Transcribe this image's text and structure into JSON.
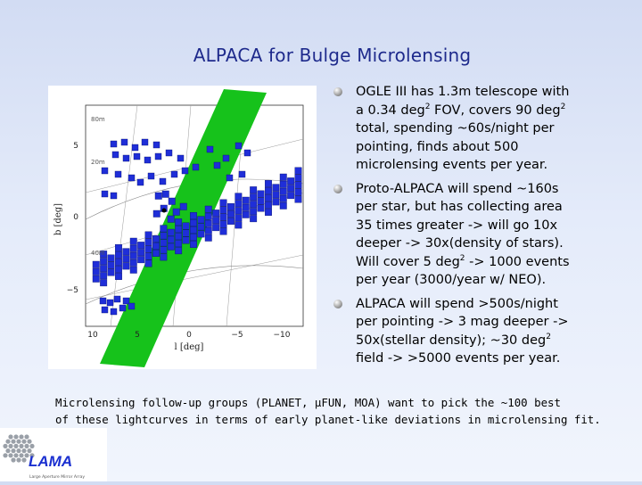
{
  "title": "ALPACA for Bulge Microlensing",
  "figure": {
    "y_axis_label": "b [deg]",
    "x_axis_label": "l [deg]",
    "x_ticks": [
      "10",
      "5",
      "0",
      "−5",
      "−10"
    ],
    "y_ticks": [
      "5",
      "0",
      "−5"
    ],
    "contour_labels": [
      "20m",
      "40m",
      "80m"
    ],
    "colors": {
      "field": "#1f2ed8",
      "strip": "#16c21b",
      "background": "#ffffff"
    }
  },
  "bullets": [
    {
      "pre": "OGLE III has 1.3m telescope with\na 0.34 deg",
      "sup": "2",
      "post": " FOV, covers 90 deg",
      "sup2": "2",
      "post2": "\ntotal, spending ~60s/night per\npointing, finds about 500\nmicrolensing events per year."
    },
    {
      "pre": "Proto-ALPACA will spend ~160s\nper star, but has collecting area\n35 times greater -> will go 10x\ndeeper -> 30x(density of stars).\nWill cover 5 deg",
      "sup": "2",
      "post": " -> 1000 events\nper year (3000/year w/ NEO).",
      "sup2": "",
      "post2": ""
    },
    {
      "pre": "ALPACA will spend >500s/night\nper pointing -> 3 mag deeper ->\n50x(stellar density); ~30 deg",
      "sup": "2",
      "post": "\nfield -> >5000 events per year.",
      "sup2": "",
      "post2": ""
    }
  ],
  "footer_text": "Microlensing follow-up groups (PLANET, μFUN, MOA) want to pick the ~100 best\nof these lightcurves in terms of early planet-like deviations in microlensing fit.",
  "logo": {
    "text": "LAMA",
    "tagline": "Large Aperture Mirror Array",
    "color": "#1a2fd0"
  }
}
